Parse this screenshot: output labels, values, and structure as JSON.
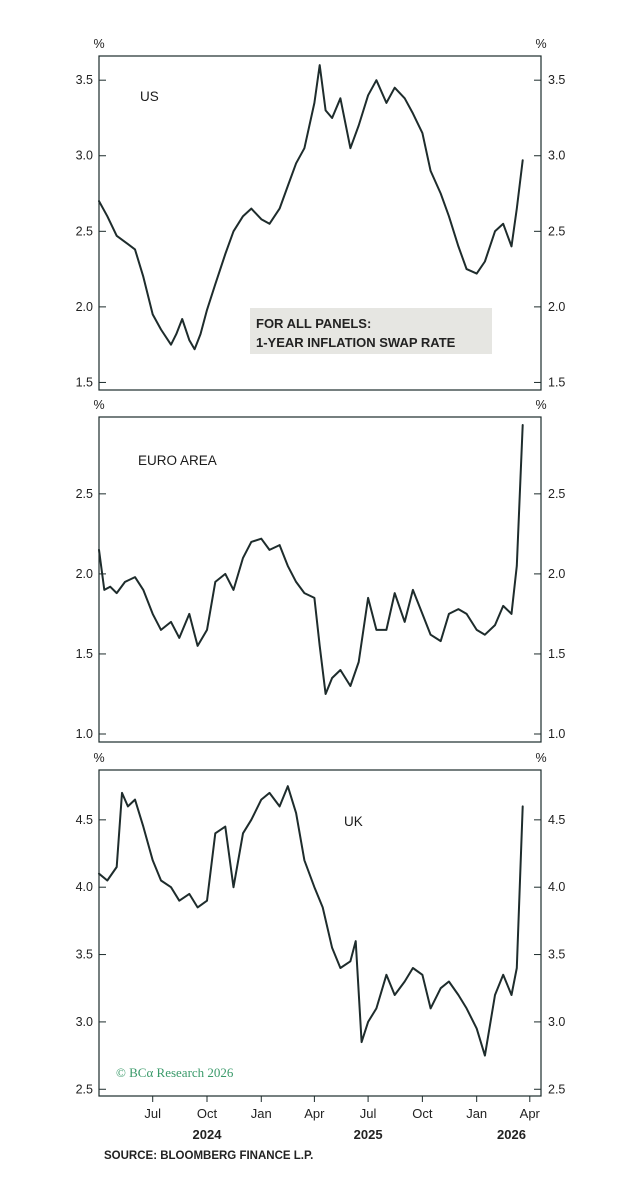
{
  "chart_data": [
    {
      "type": "line",
      "label": "US",
      "unit": "%",
      "ylim": [
        1.45,
        3.66
      ],
      "yticks": [
        1.5,
        2.0,
        2.5,
        3.0,
        3.5
      ],
      "ytick_labels": [
        "1.5",
        "2.0",
        "2.5",
        "3.0",
        "3.5"
      ],
      "series": [
        {
          "x": [
            "2024-04-01",
            "2024-04-15",
            "2024-05-01",
            "2024-05-15",
            "2024-06-01",
            "2024-06-15",
            "2024-07-01",
            "2024-07-15",
            "2024-08-01",
            "2024-08-10",
            "2024-08-20",
            "2024-09-01",
            "2024-09-10",
            "2024-09-20",
            "2024-10-01",
            "2024-10-15",
            "2024-11-01",
            "2024-11-15",
            "2024-12-01",
            "2024-12-15",
            "2025-01-01",
            "2025-01-15",
            "2025-02-01",
            "2025-02-15",
            "2025-03-01",
            "2025-03-15",
            "2025-04-01",
            "2025-04-10",
            "2025-04-20",
            "2025-05-01",
            "2025-05-15",
            "2025-06-01",
            "2025-06-15",
            "2025-07-01",
            "2025-07-15",
            "2025-08-01",
            "2025-08-15",
            "2025-09-01",
            "2025-09-15",
            "2025-10-01",
            "2025-10-15",
            "2025-11-01",
            "2025-11-15",
            "2025-12-01",
            "2025-12-15",
            "2026-01-01",
            "2026-01-15",
            "2026-02-01",
            "2026-02-15",
            "2026-03-01",
            "2026-03-10",
            "2026-03-20"
          ],
          "y": [
            2.7,
            2.6,
            2.47,
            2.43,
            2.38,
            2.2,
            1.95,
            1.85,
            1.75,
            1.82,
            1.92,
            1.78,
            1.72,
            1.82,
            1.98,
            2.15,
            2.35,
            2.5,
            2.6,
            2.65,
            2.58,
            2.55,
            2.65,
            2.8,
            2.95,
            3.05,
            3.35,
            3.6,
            3.3,
            3.25,
            3.38,
            3.05,
            3.2,
            3.4,
            3.5,
            3.35,
            3.45,
            3.38,
            3.28,
            3.15,
            2.9,
            2.75,
            2.6,
            2.4,
            2.25,
            2.22,
            2.3,
            2.5,
            2.55,
            2.4,
            2.65,
            2.97
          ]
        }
      ]
    },
    {
      "type": "line",
      "label": "EURO AREA",
      "unit": "%",
      "ylim": [
        0.95,
        2.98
      ],
      "yticks": [
        1.0,
        1.5,
        2.0,
        2.5
      ],
      "ytick_labels": [
        "1.0",
        "1.5",
        "2.0",
        "2.5"
      ],
      "series": [
        {
          "x": [
            "2024-04-01",
            "2024-04-10",
            "2024-04-20",
            "2024-05-01",
            "2024-05-15",
            "2024-06-01",
            "2024-06-15",
            "2024-07-01",
            "2024-07-15",
            "2024-08-01",
            "2024-08-15",
            "2024-09-01",
            "2024-09-15",
            "2024-10-01",
            "2024-10-15",
            "2024-11-01",
            "2024-11-15",
            "2024-12-01",
            "2024-12-15",
            "2025-01-01",
            "2025-01-15",
            "2025-02-01",
            "2025-02-15",
            "2025-03-01",
            "2025-03-15",
            "2025-04-01",
            "2025-04-10",
            "2025-04-20",
            "2025-05-01",
            "2025-05-15",
            "2025-06-01",
            "2025-06-15",
            "2025-07-01",
            "2025-07-15",
            "2025-08-01",
            "2025-08-15",
            "2025-09-01",
            "2025-09-15",
            "2025-10-01",
            "2025-10-15",
            "2025-11-01",
            "2025-11-15",
            "2025-12-01",
            "2025-12-15",
            "2026-01-01",
            "2026-01-15",
            "2026-02-01",
            "2026-02-15",
            "2026-03-01",
            "2026-03-10",
            "2026-03-20"
          ],
          "y": [
            2.15,
            1.9,
            1.92,
            1.88,
            1.95,
            1.98,
            1.9,
            1.75,
            1.65,
            1.7,
            1.6,
            1.75,
            1.55,
            1.65,
            1.95,
            2.0,
            1.9,
            2.1,
            2.2,
            2.22,
            2.15,
            2.18,
            2.05,
            1.95,
            1.88,
            1.85,
            1.55,
            1.25,
            1.35,
            1.4,
            1.3,
            1.45,
            1.85,
            1.65,
            1.65,
            1.88,
            1.7,
            1.9,
            1.75,
            1.62,
            1.58,
            1.75,
            1.78,
            1.75,
            1.65,
            1.62,
            1.68,
            1.8,
            1.75,
            2.05,
            2.93
          ]
        }
      ]
    },
    {
      "type": "line",
      "label": "UK",
      "unit": "%",
      "ylim": [
        2.45,
        4.87
      ],
      "yticks": [
        2.5,
        3.0,
        3.5,
        4.0,
        4.5
      ],
      "ytick_labels": [
        "2.5",
        "3.0",
        "3.5",
        "4.0",
        "4.5"
      ],
      "series": [
        {
          "x": [
            "2024-04-01",
            "2024-04-15",
            "2024-05-01",
            "2024-05-10",
            "2024-05-20",
            "2024-06-01",
            "2024-06-15",
            "2024-07-01",
            "2024-07-15",
            "2024-08-01",
            "2024-08-15",
            "2024-09-01",
            "2024-09-15",
            "2024-10-01",
            "2024-10-15",
            "2024-11-01",
            "2024-11-15",
            "2024-12-01",
            "2024-12-15",
            "2025-01-01",
            "2025-01-15",
            "2025-02-01",
            "2025-02-15",
            "2025-03-01",
            "2025-03-15",
            "2025-04-01",
            "2025-04-15",
            "2025-05-01",
            "2025-05-15",
            "2025-06-01",
            "2025-06-10",
            "2025-06-20",
            "2025-07-01",
            "2025-07-15",
            "2025-08-01",
            "2025-08-15",
            "2025-09-01",
            "2025-09-15",
            "2025-10-01",
            "2025-10-15",
            "2025-11-01",
            "2025-11-15",
            "2025-12-01",
            "2025-12-15",
            "2026-01-01",
            "2026-01-15",
            "2026-02-01",
            "2026-02-15",
            "2026-03-01",
            "2026-03-10",
            "2026-03-20"
          ],
          "y": [
            4.1,
            4.05,
            4.15,
            4.7,
            4.6,
            4.65,
            4.45,
            4.2,
            4.05,
            4.0,
            3.9,
            3.95,
            3.85,
            3.9,
            4.4,
            4.45,
            4.0,
            4.4,
            4.5,
            4.65,
            4.7,
            4.6,
            4.75,
            4.55,
            4.2,
            4.0,
            3.85,
            3.55,
            3.4,
            3.45,
            3.6,
            2.85,
            3.0,
            3.1,
            3.35,
            3.2,
            3.3,
            3.4,
            3.35,
            3.1,
            3.25,
            3.3,
            3.2,
            3.1,
            2.95,
            2.75,
            3.2,
            3.35,
            3.2,
            3.4,
            4.6
          ]
        }
      ]
    }
  ],
  "x_axis": {
    "months": [
      {
        "label": "Jul",
        "date": "2024-07-01"
      },
      {
        "label": "Oct",
        "date": "2024-10-01"
      },
      {
        "label": "Jan",
        "date": "2025-01-01"
      },
      {
        "label": "Apr",
        "date": "2025-04-01"
      },
      {
        "label": "Jul",
        "date": "2025-07-01"
      },
      {
        "label": "Oct",
        "date": "2025-10-01"
      },
      {
        "label": "Jan",
        "date": "2026-01-01"
      },
      {
        "label": "Apr",
        "date": "2026-04-01"
      }
    ],
    "years": [
      {
        "label": "2024",
        "date": "2024-10-01"
      },
      {
        "label": "2025",
        "date": "2025-07-01"
      },
      {
        "label": "2026",
        "date": "2026-03-01"
      }
    ],
    "range": [
      "2024-04-01",
      "2026-04-20"
    ]
  },
  "note": {
    "line1": "FOR ALL PANELS:",
    "line2": "1-YEAR INFLATION SWAP RATE",
    "background": "#e6e6e2"
  },
  "copyright": "© BCα Research 2026",
  "source": "SOURCE: BLOOMBERG FINANCE L.P.",
  "colors": {
    "line": "#1e2c2c",
    "axis": "#1c2b2b",
    "brand": "#3a9a6a"
  }
}
